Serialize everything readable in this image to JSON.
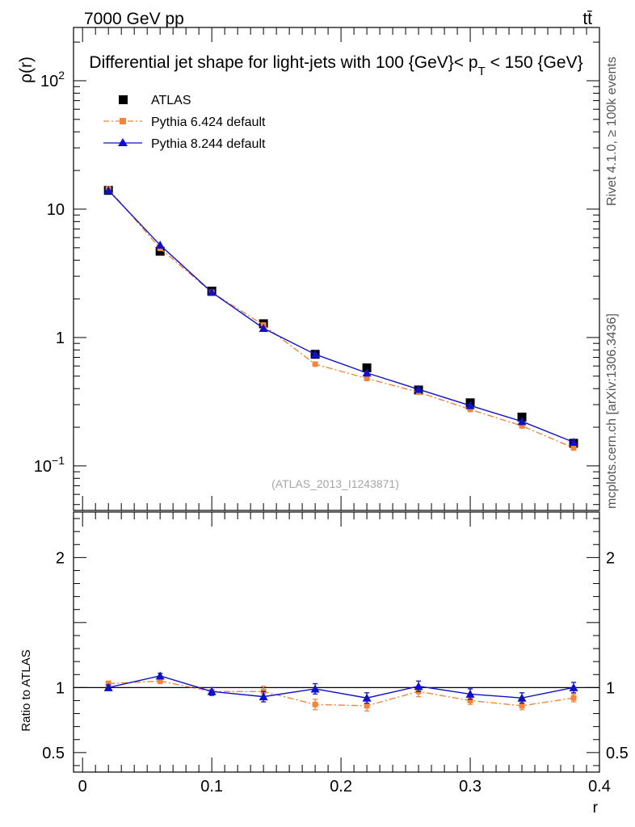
{
  "header": {
    "energy_label": "7000 GeV pp",
    "process_label": "tt̄"
  },
  "side_labels": {
    "rivet": "Rivet 4.1.0, ≥ 100k events",
    "source": "mcplots.cern.ch [arXiv:1306.3436]"
  },
  "chart_data": [
    {
      "type": "line",
      "title": "Differential jet shape for light-jets with 100 {GeV}< p_T < 150 {GeV}",
      "title_parts": {
        "main": "Differential jet shape for light-jets with 100 {GeV}< p",
        "sub": "T",
        "rest": " < 150 {GeV}"
      },
      "ylabel": "ρ(r)",
      "yscale": "log",
      "ylim": [
        0.045,
        260
      ],
      "xlim": [
        -0.007,
        0.4
      ],
      "y_ticks": [
        {
          "value": 0.1,
          "label": "10",
          "sup": "−1"
        },
        {
          "value": 1,
          "label": "1",
          "sup": ""
        },
        {
          "value": 10,
          "label": "10",
          "sup": ""
        },
        {
          "value": 100,
          "label": "10",
          "sup": "2"
        }
      ],
      "watermark": "(ATLAS_2013_I1243871)",
      "x": [
        0.02,
        0.06,
        0.1,
        0.14,
        0.18,
        0.22,
        0.26,
        0.3,
        0.34,
        0.38
      ],
      "series": [
        {
          "name": "ATLAS",
          "marker": "square",
          "color": "#000000",
          "line": false,
          "values": [
            14.0,
            4.7,
            2.3,
            1.28,
            0.74,
            0.58,
            0.39,
            0.31,
            0.24,
            0.15
          ]
        },
        {
          "name": "Pythia 6.424 default",
          "marker": "circle",
          "color": "#f5843c",
          "line": "dashdot",
          "values": [
            14.4,
            4.95,
            2.25,
            1.25,
            0.62,
            0.48,
            0.375,
            0.275,
            0.205,
            0.138
          ]
        },
        {
          "name": "Pythia 8.244 default",
          "marker": "triangle",
          "color": "#1010c8",
          "line": "solid",
          "values": [
            14.0,
            5.25,
            2.25,
            1.18,
            0.74,
            0.53,
            0.395,
            0.295,
            0.222,
            0.153
          ]
        }
      ]
    },
    {
      "type": "line",
      "title": "",
      "ylabel": "Ratio to ATLAS",
      "xlabel": "r",
      "ylim": [
        0.35,
        2.35
      ],
      "xlim": [
        -0.007,
        0.4
      ],
      "y_ticks": [
        {
          "value": 0.5,
          "label": "0.5"
        },
        {
          "value": 1,
          "label": "1"
        },
        {
          "value": 2,
          "label": "2"
        }
      ],
      "x_ticks": [
        {
          "value": 0,
          "label": "0"
        },
        {
          "value": 0.1,
          "label": "0.1"
        },
        {
          "value": 0.2,
          "label": "0.2"
        },
        {
          "value": 0.3,
          "label": "0.3"
        },
        {
          "value": 0.4,
          "label": "0.4"
        }
      ],
      "reference_line": 1,
      "x": [
        0.02,
        0.06,
        0.1,
        0.14,
        0.18,
        0.22,
        0.26,
        0.3,
        0.34,
        0.38
      ],
      "series": [
        {
          "name": "Pythia 6.424 default",
          "marker": "circle",
          "color": "#f5843c",
          "line": "dashdot",
          "values": [
            1.03,
            1.05,
            0.97,
            0.97,
            0.87,
            0.86,
            0.97,
            0.9,
            0.86,
            0.92
          ],
          "errors": [
            0.02,
            0.02,
            0.03,
            0.04,
            0.04,
            0.04,
            0.04,
            0.03,
            0.03,
            0.03
          ]
        },
        {
          "name": "Pythia 8.244 default",
          "marker": "triangle",
          "color": "#1010c8",
          "line": "solid",
          "values": [
            1.0,
            1.09,
            0.97,
            0.93,
            0.99,
            0.92,
            1.01,
            0.95,
            0.92,
            1.0
          ],
          "errors": [
            0.02,
            0.02,
            0.03,
            0.04,
            0.04,
            0.04,
            0.04,
            0.04,
            0.04,
            0.04
          ]
        }
      ]
    }
  ]
}
